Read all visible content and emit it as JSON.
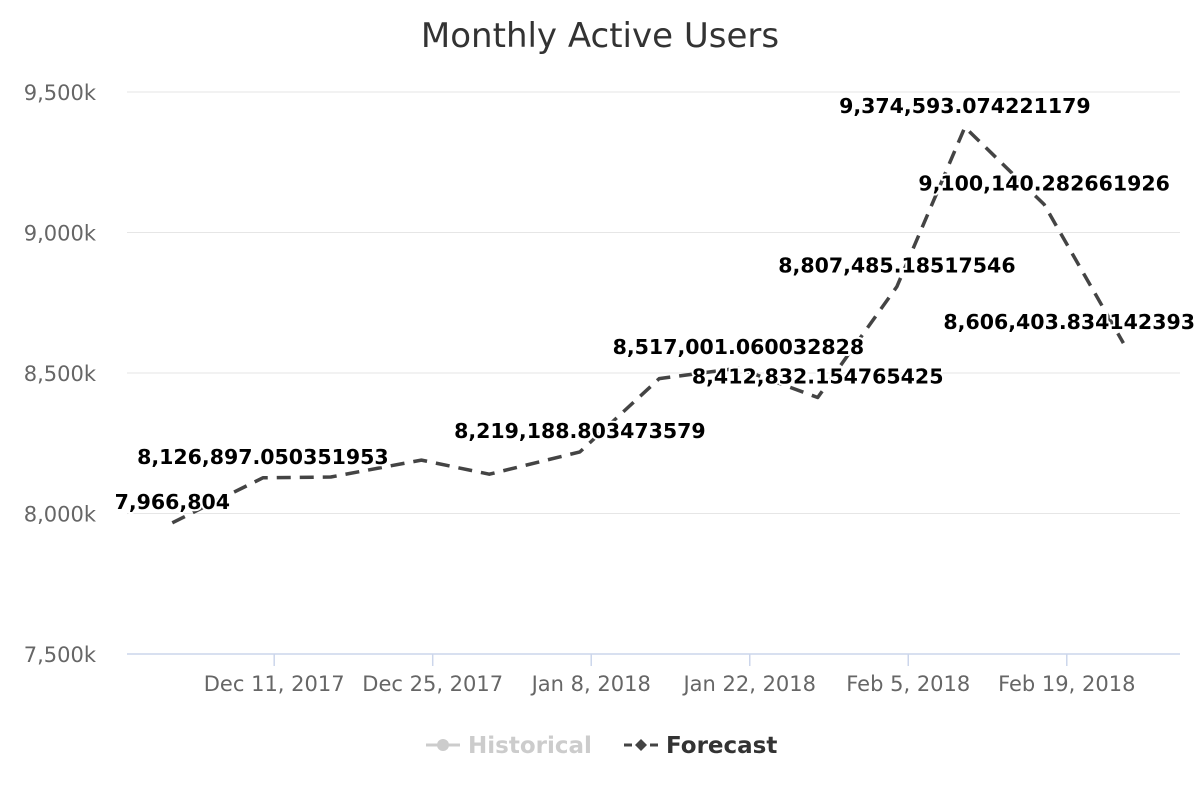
{
  "chart_data": {
    "type": "line",
    "title": "Monthly Active Users",
    "xlabel": "",
    "ylabel": "",
    "ylim": [
      7500000,
      9500000
    ],
    "y_ticks": [
      {
        "value": 7500000,
        "label": "7,500k"
      },
      {
        "value": 8000000,
        "label": "8,000k"
      },
      {
        "value": 8500000,
        "label": "8,500k"
      },
      {
        "value": 9000000,
        "label": "9,000k"
      },
      {
        "value": 9500000,
        "label": "9,500k"
      }
    ],
    "x_range": [
      "2017-11-28",
      "2018-03-01"
    ],
    "x_ticks": [
      {
        "date": "2017-12-11",
        "label": "Dec 11, 2017"
      },
      {
        "date": "2017-12-25",
        "label": "Dec 25, 2017"
      },
      {
        "date": "2018-01-08",
        "label": "Jan 8, 2018"
      },
      {
        "date": "2018-01-22",
        "label": "Jan 22, 2018"
      },
      {
        "date": "2018-02-05",
        "label": "Feb 5, 2018"
      },
      {
        "date": "2018-02-19",
        "label": "Feb 19, 2018"
      }
    ],
    "grid": true,
    "legend_position": "bottom-center",
    "series": [
      {
        "name": "Historical",
        "color": "#cccccc",
        "visible": false,
        "points": []
      },
      {
        "name": "Forecast",
        "color": "#444444",
        "visible": true,
        "dash": "dashed",
        "points": [
          {
            "x": "2017-12-02",
            "y": 7966804,
            "label": "7,966,804"
          },
          {
            "x": "2017-12-10",
            "y": 8126897.050351953,
            "label": "8,126,897.050351953"
          },
          {
            "x": "2017-12-16",
            "y": 8130000
          },
          {
            "x": "2017-12-24",
            "y": 8190000
          },
          {
            "x": "2017-12-30",
            "y": 8140000
          },
          {
            "x": "2018-01-07",
            "y": 8219188.803473579,
            "label": "8,219,188.803473579"
          },
          {
            "x": "2018-01-14",
            "y": 8480000
          },
          {
            "x": "2018-01-21",
            "y": 8517001.060032828,
            "label": "8,517,001.060032828"
          },
          {
            "x": "2018-01-28",
            "y": 8412832.154765425,
            "label": "8,412,832.154765425"
          },
          {
            "x": "2018-02-04",
            "y": 8807485.18517546,
            "label": "8,807,485.18517546"
          },
          {
            "x": "2018-02-10",
            "y": 9374593.074221179,
            "label": "9,374,593.074221179"
          },
          {
            "x": "2018-02-17",
            "y": 9100140.282661926,
            "label": "9,100,140.282661926"
          },
          {
            "x": "2018-02-24",
            "y": 8606403.834142393,
            "label": "8,606,403.834142393"
          }
        ]
      }
    ]
  }
}
